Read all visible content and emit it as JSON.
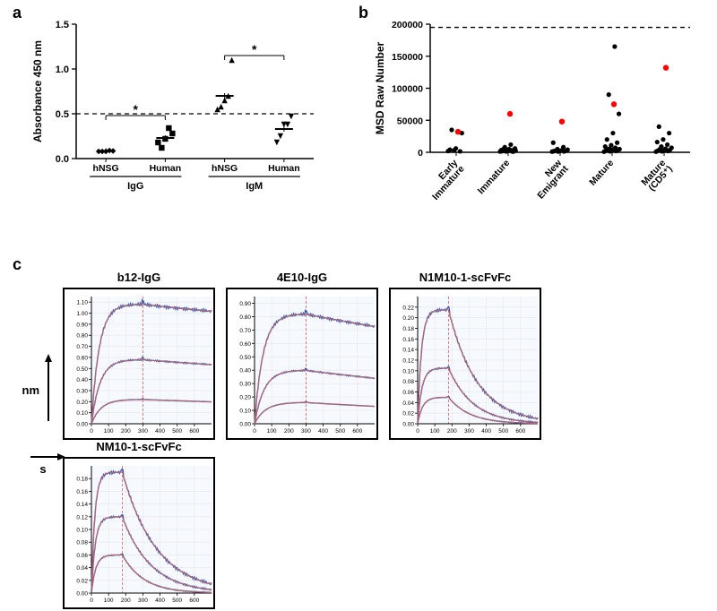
{
  "panel_a": {
    "label": "a",
    "ylabel": "Absorbance 450 nm",
    "ylim": [
      0,
      1.5
    ],
    "yticks": [
      0,
      0.5,
      1.0,
      1.5
    ],
    "dashed_line_y": 0.5,
    "groups": [
      "hNSG",
      "Human",
      "hNSG",
      "Human"
    ],
    "group_top": [
      "IgG",
      "IgG",
      "IgM",
      "IgM"
    ],
    "sig_brackets": [
      {
        "from": 0,
        "to": 1,
        "y": 0.48,
        "label": "*"
      },
      {
        "from": 2,
        "to": 3,
        "y": 1.15,
        "label": "*"
      }
    ],
    "series": [
      {
        "x": 0,
        "marker": "diamond",
        "points": [
          0.08,
          0.08,
          0.08,
          0.09,
          0.085
        ],
        "mean": 0.085
      },
      {
        "x": 1,
        "marker": "square",
        "points": [
          0.18,
          0.12,
          0.22,
          0.34,
          0.28
        ],
        "mean": 0.23
      },
      {
        "x": 2,
        "marker": "triangle",
        "points": [
          0.55,
          0.58,
          0.65,
          0.7,
          1.1
        ],
        "mean": 0.7
      },
      {
        "x": 3,
        "marker": "invtriangle",
        "points": [
          0.18,
          0.25,
          0.38,
          0.38,
          0.47
        ],
        "mean": 0.33
      }
    ],
    "colors": {
      "marker": "#000000",
      "line": "#000000"
    }
  },
  "panel_b": {
    "label": "b",
    "ylabel": "MSD Raw Number",
    "ylim": [
      0,
      200000
    ],
    "yticks": [
      0,
      50000,
      100000,
      150000,
      200000
    ],
    "dashed_line_y": 195000,
    "categories": [
      "Early Immature",
      "Immature",
      "New Emigrant",
      "Mature",
      "Mature (CD5+)"
    ],
    "categories_wrapped": [
      [
        "Early",
        "Immature"
      ],
      [
        "Immature"
      ],
      [
        "New",
        "Emigrant"
      ],
      [
        "Mature"
      ],
      [
        "Mature",
        "(CD5⁺)"
      ]
    ],
    "black_points": {
      "0": [
        2000,
        3000,
        1500,
        4000,
        6000,
        30000,
        35000
      ],
      "1": [
        1200,
        1400,
        1600,
        1800,
        2000,
        2200,
        2400,
        2600,
        2800,
        3000,
        3200,
        3400,
        3600,
        1000,
        4500,
        5000,
        6000,
        8000,
        12000
      ],
      "2": [
        1000,
        1200,
        1400,
        1800,
        2000,
        2200,
        2600,
        3000,
        4000,
        5000,
        8000,
        15000
      ],
      "3": [
        1000,
        1500,
        2000,
        2500,
        3000,
        3500,
        4000,
        4500,
        5000,
        5500,
        7000,
        9000,
        11000,
        15000,
        20000,
        30000,
        60000,
        90000,
        165000
      ],
      "4": [
        1000,
        1500,
        2000,
        2500,
        3000,
        3500,
        4500,
        5500,
        7000,
        9000,
        12000,
        16000,
        20000,
        30000,
        40000
      ]
    },
    "red_points": {
      "0": [
        32000
      ],
      "1": [
        60000
      ],
      "2": [
        48000
      ],
      "3": [
        75000
      ],
      "4": [
        132000
      ]
    },
    "colors": {
      "black": "#000000",
      "red": "#ff0000"
    }
  },
  "panel_c": {
    "label": "c",
    "y_arrow_label": "nm",
    "x_arrow_label": "s",
    "plots": [
      {
        "title": "b12-IgG",
        "xlim": [
          0,
          700
        ],
        "ylim": [
          0,
          1.15
        ],
        "xticks": [
          0,
          100,
          200,
          300,
          400,
          500,
          600
        ],
        "yticks": [
          0.0,
          0.1,
          0.2,
          0.3,
          0.4,
          0.5,
          0.6,
          0.7,
          0.8,
          0.9,
          1.0,
          1.1
        ],
        "divider_x": 300,
        "curves": [
          {
            "A": 1.08,
            "k_on": 0.022,
            "k_off": 0.00015
          },
          {
            "A": 0.58,
            "k_on": 0.02,
            "k_off": 0.0002
          },
          {
            "A": 0.22,
            "k_on": 0.018,
            "k_off": 0.00025
          }
        ]
      },
      {
        "title": "4E10-IgG",
        "xlim": [
          0,
          700
        ],
        "ylim": [
          0,
          0.95
        ],
        "xticks": [
          0,
          100,
          200,
          300,
          400,
          500,
          600
        ],
        "yticks": [
          0.0,
          0.1,
          0.2,
          0.3,
          0.4,
          0.5,
          0.6,
          0.7,
          0.8,
          0.9
        ],
        "divider_x": 300,
        "curves": [
          {
            "A": 0.82,
            "k_on": 0.02,
            "k_off": 0.0003
          },
          {
            "A": 0.4,
            "k_on": 0.018,
            "k_off": 0.0004
          },
          {
            "A": 0.16,
            "k_on": 0.016,
            "k_off": 0.0005
          }
        ]
      },
      {
        "title": "N1M10-1-scFvFc",
        "xlim": [
          0,
          700
        ],
        "ylim": [
          0,
          0.24
        ],
        "xticks": [
          0,
          100,
          200,
          300,
          400,
          500,
          600
        ],
        "yticks": [
          0.0,
          0.02,
          0.04,
          0.06,
          0.08,
          0.1,
          0.12,
          0.14,
          0.16,
          0.18,
          0.2,
          0.22
        ],
        "divider_x": 180,
        "curves": [
          {
            "A": 0.215,
            "k_on": 0.045,
            "k_off": 0.006
          },
          {
            "A": 0.105,
            "k_on": 0.04,
            "k_off": 0.007
          },
          {
            "A": 0.05,
            "k_on": 0.035,
            "k_off": 0.008
          }
        ]
      },
      {
        "title": "NM10-1-scFvFc",
        "xlim": [
          0,
          700
        ],
        "ylim": [
          0,
          0.2
        ],
        "xticks": [
          0,
          100,
          200,
          300,
          400,
          500,
          600
        ],
        "yticks": [
          0.0,
          0.02,
          0.04,
          0.06,
          0.08,
          0.1,
          0.12,
          0.14,
          0.16,
          0.18
        ],
        "divider_x": 180,
        "curves": [
          {
            "A": 0.19,
            "k_on": 0.05,
            "k_off": 0.005
          },
          {
            "A": 0.12,
            "k_on": 0.045,
            "k_off": 0.006
          },
          {
            "A": 0.06,
            "k_on": 0.04,
            "k_off": 0.008
          }
        ]
      }
    ],
    "colors": {
      "data": "#3a5db0",
      "fit": "#d06060",
      "axis": "#000000",
      "grid": "#e6e6e6",
      "bg": "#f6f9fd"
    }
  }
}
